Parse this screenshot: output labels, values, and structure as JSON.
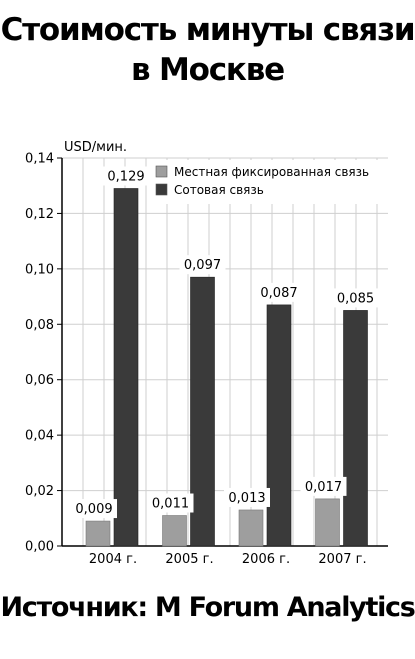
{
  "title_lines": [
    "Стоимость минуты связи",
    "в Москве"
  ],
  "source": "Источник: M Forum Analytics",
  "chart_data": {
    "type": "bar",
    "ylabel": "USD/мин.",
    "categories": [
      "2004 г.",
      "2005 г.",
      "2006 г.",
      "2007 г."
    ],
    "ylim": [
      0,
      0.14
    ],
    "yticks": [
      "0,00",
      "0,02",
      "0,04",
      "0,06",
      "0,08",
      "0,10",
      "0,12",
      "0,14"
    ],
    "grid": true,
    "legend_position": "top-right",
    "series": [
      {
        "name": "Местная фиксированная связь",
        "color": "#9e9e9e",
        "values": [
          0.009,
          0.011,
          0.013,
          0.017
        ],
        "labels": [
          "0,009",
          "0,011",
          "0,013",
          "0,017"
        ]
      },
      {
        "name": "Сотовая связь",
        "color": "#3a3a3a",
        "values": [
          0.129,
          0.097,
          0.087,
          0.085
        ],
        "labels": [
          "0,129",
          "0,097",
          "0,087",
          "0,085"
        ]
      }
    ]
  }
}
